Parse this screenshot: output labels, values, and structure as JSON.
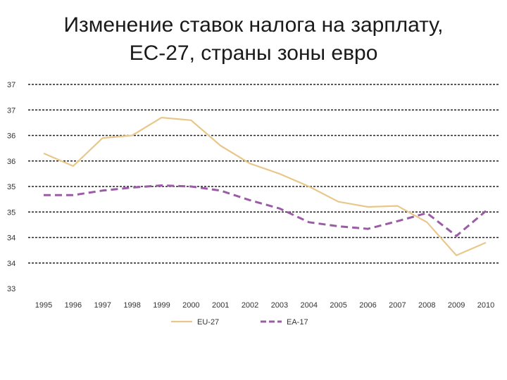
{
  "title_line1": "Изменение ставок налога на зарплату,",
  "title_line2": "ЕС-27, страны зоны евро",
  "chart_data": {
    "type": "line",
    "x": [
      "1995",
      "1996",
      "1997",
      "1998",
      "1999",
      "2000",
      "2001",
      "2002",
      "2003",
      "2004",
      "2005",
      "2006",
      "2007",
      "2008",
      "2009",
      "2010"
    ],
    "y_tick_labels": [
      "33",
      "34",
      "34",
      "35",
      "35",
      "36",
      "36",
      "37",
      "37"
    ],
    "ylim": [
      33,
      37
    ],
    "grid": true,
    "legend_position": "bottom",
    "series": [
      {
        "name": "EU-27",
        "color": "#e8c88a",
        "dash": "solid",
        "values": [
          35.65,
          35.4,
          35.95,
          36.0,
          36.35,
          36.3,
          35.8,
          35.45,
          35.25,
          35.0,
          34.7,
          34.6,
          34.62,
          34.3,
          33.65,
          33.9
        ]
      },
      {
        "name": "EA-17",
        "color": "#9b5ca6",
        "dash": "dashed",
        "values": [
          34.83,
          34.83,
          34.92,
          34.98,
          35.02,
          35.0,
          34.92,
          34.73,
          34.57,
          34.3,
          34.22,
          34.17,
          34.32,
          34.48,
          34.03,
          34.52
        ]
      }
    ]
  }
}
